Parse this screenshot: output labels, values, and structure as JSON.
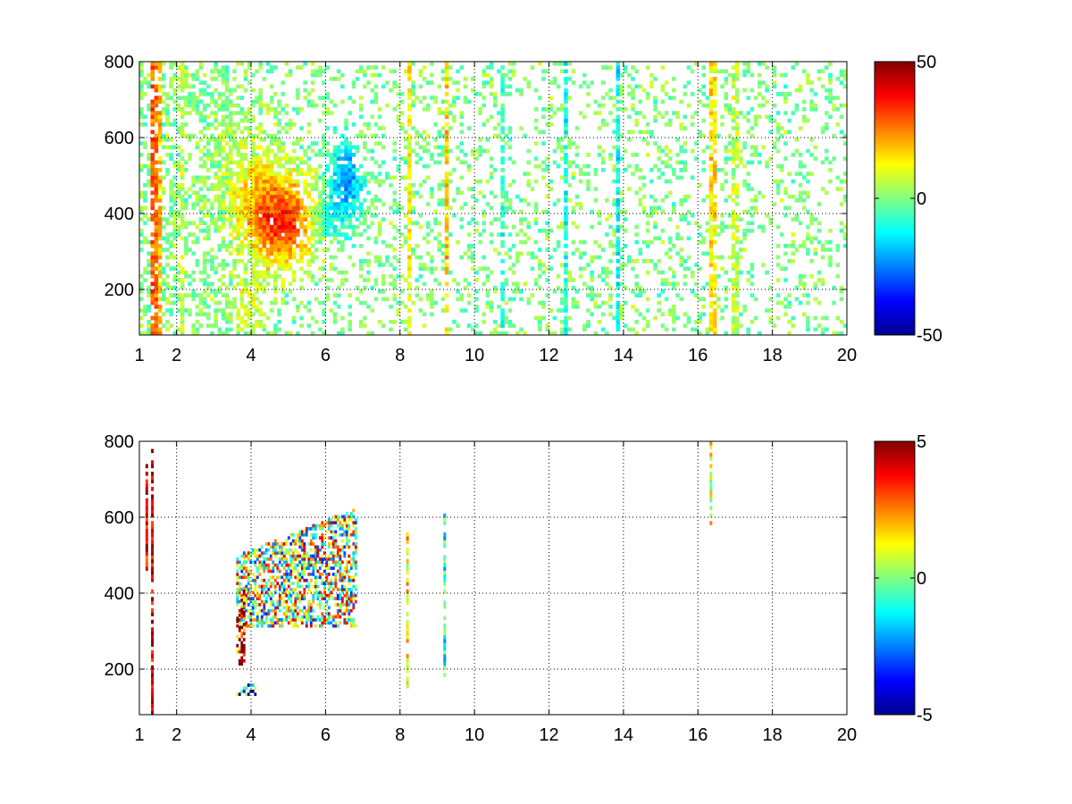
{
  "chart_data": [
    {
      "type": "heatmap",
      "title": "",
      "xlabel": "",
      "ylabel": "",
      "xlim": [
        1,
        20
      ],
      "ylim": [
        80,
        800
      ],
      "xticks": [
        1,
        2,
        4,
        6,
        8,
        10,
        12,
        14,
        16,
        18,
        20
      ],
      "yticks": [
        200,
        400,
        600,
        800
      ],
      "grid": true,
      "colormap": "jet",
      "colorbar": {
        "range": [
          -50,
          50
        ],
        "ticks": [
          -50,
          0,
          50
        ]
      },
      "features": [
        {
          "kind": "blob",
          "x": 4.8,
          "y": 370,
          "sx": 0.9,
          "sy": 110,
          "value": 32,
          "weight": 1.0
        },
        {
          "kind": "blob",
          "x": 4.0,
          "y": 470,
          "sx": 0.9,
          "sy": 150,
          "value": 12,
          "weight": 0.9
        },
        {
          "kind": "blob",
          "x": 3.9,
          "y": 160,
          "sx": 0.5,
          "sy": 80,
          "value": 14,
          "weight": 0.7
        },
        {
          "kind": "blob",
          "x": 6.5,
          "y": 480,
          "sx": 0.45,
          "sy": 120,
          "value": -22,
          "weight": 1.0
        },
        {
          "kind": "blob",
          "x": 5.9,
          "y": 380,
          "sx": 0.35,
          "sy": 60,
          "value": -18,
          "weight": 0.7
        },
        {
          "kind": "column",
          "x": 1.35,
          "value": 28
        },
        {
          "kind": "column",
          "x": 1.5,
          "value": 20
        },
        {
          "kind": "column",
          "x": 2.1,
          "value": 8
        },
        {
          "kind": "column",
          "x": 8.2,
          "value": 12
        },
        {
          "kind": "column",
          "x": 9.2,
          "value": 18
        },
        {
          "kind": "column",
          "x": 10.7,
          "value": -8
        },
        {
          "kind": "column",
          "x": 12.4,
          "value": -10
        },
        {
          "kind": "column",
          "x": 13.8,
          "value": -12
        },
        {
          "kind": "column",
          "x": 16.35,
          "value": 15
        },
        {
          "kind": "column",
          "x": 16.95,
          "value": 6
        }
      ]
    },
    {
      "type": "heatmap",
      "title": "",
      "xlabel": "",
      "ylabel": "",
      "xlim": [
        1,
        20
      ],
      "ylim": [
        80,
        800
      ],
      "xticks": [
        1,
        2,
        4,
        6,
        8,
        10,
        12,
        14,
        16,
        18,
        20
      ],
      "yticks": [
        200,
        400,
        600,
        800
      ],
      "grid": true,
      "colormap": "jet",
      "colorbar": {
        "range": [
          -5,
          5
        ],
        "ticks": [
          -5,
          0,
          5
        ]
      },
      "features": [
        {
          "kind": "region",
          "x": [
            3.6,
            6.8
          ],
          "y": [
            310,
            620
          ],
          "value": 0.5
        },
        {
          "kind": "region",
          "x": [
            3.6,
            3.8
          ],
          "y": [
            210,
            420
          ],
          "value": 4.5
        },
        {
          "kind": "region",
          "x": [
            3.6,
            4.1
          ],
          "y": [
            130,
            160
          ],
          "value": -3.0
        },
        {
          "kind": "line",
          "x": 1.35,
          "y": [
            80,
            790
          ],
          "value": 4.5
        },
        {
          "kind": "line",
          "x": 1.2,
          "y": [
            460,
            770
          ],
          "value": 4.0
        },
        {
          "kind": "line",
          "x": 8.2,
          "y": [
            150,
            560
          ],
          "value": 1.5
        },
        {
          "kind": "line",
          "x": 9.2,
          "y": [
            170,
            650
          ],
          "value": -1.0
        },
        {
          "kind": "line",
          "x": 16.35,
          "y": [
            580,
            800
          ],
          "value": 1.0
        }
      ]
    }
  ]
}
